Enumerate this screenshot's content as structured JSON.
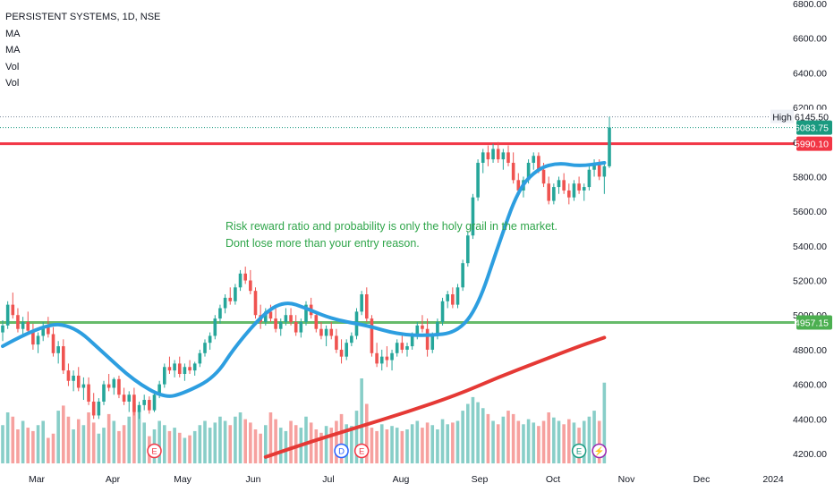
{
  "header": {
    "symbol_title": "PERSISTENT SYSTEMS, 1D, NSE",
    "indicators": [
      "MA",
      "MA",
      "Vol",
      "Vol"
    ]
  },
  "annotation": {
    "line1": "Risk reward ratio and probability is only the holy grail in the market.",
    "line2": "Dont lose more than your entry reason."
  },
  "chart_data": {
    "type": "candlestick",
    "y_axis": {
      "ticks": [
        "6800.00",
        "6600.00",
        "6400.00",
        "6200.00",
        "6000.00",
        "5800.00",
        "5600.00",
        "5400.00",
        "5200.00",
        "5000.00",
        "4800.00",
        "4600.00",
        "4400.00",
        "4200.00"
      ],
      "tick_values": [
        6800,
        6600,
        6400,
        6200,
        6000,
        5800,
        5600,
        5400,
        5200,
        5000,
        4800,
        4600,
        4400,
        4200
      ],
      "range": [
        4180,
        6840
      ]
    },
    "x_axis": {
      "ticks": [
        "Mar",
        "Apr",
        "May",
        "Jun",
        "Jul",
        "Aug",
        "Sep",
        "Oct",
        "Nov",
        "Dec",
        "2024"
      ]
    },
    "price_tags": [
      {
        "label": "High",
        "value": "6145.50",
        "bg": "#ffffff",
        "fg": "#131722",
        "kind": "high"
      },
      {
        "label": "",
        "value": "6083.75",
        "bg": "#1a9a80",
        "fg": "#ffffff",
        "kind": "last"
      },
      {
        "label": "",
        "value": "5990.10",
        "bg": "#f23645",
        "fg": "#ffffff",
        "kind": "resistance"
      },
      {
        "label": "",
        "value": "4957.15",
        "bg": "#4caf50",
        "fg": "#ffffff",
        "kind": "support"
      }
    ],
    "horizontal_lines": [
      {
        "value": 5990.1,
        "color": "#f23645",
        "width": 3
      },
      {
        "value": 4957.15,
        "color": "#66bb6a",
        "width": 3
      },
      {
        "value": 6145.5,
        "color": "#7b8a99",
        "width": 1,
        "dotted": true
      },
      {
        "value": 6083.75,
        "color": "#1a9a80",
        "width": 1,
        "dotted": true
      }
    ],
    "candles_ohlc": [
      [
        4900,
        4970,
        4850,
        4940
      ],
      [
        4940,
        5080,
        4920,
        5060
      ],
      [
        5060,
        5130,
        4980,
        5000
      ],
      [
        5000,
        5040,
        4900,
        4920
      ],
      [
        4920,
        4990,
        4880,
        4960
      ],
      [
        4960,
        5020,
        4900,
        4910
      ],
      [
        4910,
        4950,
        4800,
        4830
      ],
      [
        4830,
        4900,
        4780,
        4880
      ],
      [
        4880,
        4960,
        4850,
        4930
      ],
      [
        4930,
        4990,
        4870,
        4890
      ],
      [
        4890,
        4930,
        4760,
        4780
      ],
      [
        4780,
        4850,
        4720,
        4820
      ],
      [
        4820,
        4860,
        4660,
        4680
      ],
      [
        4680,
        4720,
        4590,
        4620
      ],
      [
        4620,
        4680,
        4560,
        4650
      ],
      [
        4650,
        4700,
        4560,
        4580
      ],
      [
        4580,
        4640,
        4510,
        4600
      ],
      [
        4600,
        4640,
        4480,
        4500
      ],
      [
        4500,
        4550,
        4400,
        4420
      ],
      [
        4420,
        4520,
        4400,
        4500
      ],
      [
        4500,
        4620,
        4480,
        4600
      ],
      [
        4600,
        4660,
        4560,
        4580
      ],
      [
        4580,
        4640,
        4540,
        4630
      ],
      [
        4630,
        4650,
        4520,
        4540
      ],
      [
        4540,
        4580,
        4480,
        4500
      ],
      [
        4500,
        4560,
        4440,
        4540
      ],
      [
        4540,
        4580,
        4420,
        4440
      ],
      [
        4440,
        4500,
        4400,
        4480
      ],
      [
        4480,
        4540,
        4450,
        4510
      ],
      [
        4510,
        4530,
        4430,
        4450
      ],
      [
        4450,
        4560,
        4440,
        4540
      ],
      [
        4540,
        4620,
        4520,
        4600
      ],
      [
        4600,
        4720,
        4580,
        4700
      ],
      [
        4700,
        4760,
        4660,
        4680
      ],
      [
        4680,
        4740,
        4640,
        4720
      ],
      [
        4720,
        4760,
        4640,
        4660
      ],
      [
        4660,
        4720,
        4620,
        4700
      ],
      [
        4700,
        4740,
        4660,
        4680
      ],
      [
        4680,
        4730,
        4650,
        4720
      ],
      [
        4720,
        4800,
        4700,
        4780
      ],
      [
        4780,
        4860,
        4760,
        4840
      ],
      [
        4840,
        4900,
        4800,
        4880
      ],
      [
        4880,
        5000,
        4860,
        4980
      ],
      [
        4980,
        5060,
        4950,
        5040
      ],
      [
        5040,
        5120,
        5010,
        5100
      ],
      [
        5100,
        5160,
        5060,
        5080
      ],
      [
        5080,
        5180,
        5060,
        5160
      ],
      [
        5160,
        5260,
        5140,
        5240
      ],
      [
        5240,
        5280,
        5180,
        5200
      ],
      [
        5200,
        5260,
        5120,
        5140
      ],
      [
        5140,
        5160,
        4980,
        5000
      ],
      [
        5000,
        5060,
        4920,
        4960
      ],
      [
        4960,
        5040,
        4940,
        5020
      ],
      [
        5020,
        5060,
        4960,
        4980
      ],
      [
        4980,
        5040,
        4900,
        4920
      ],
      [
        4920,
        4980,
        4880,
        4960
      ],
      [
        4960,
        5040,
        4940,
        5000
      ],
      [
        5000,
        5040,
        4940,
        4960
      ],
      [
        4960,
        5000,
        4880,
        4900
      ],
      [
        4900,
        4980,
        4870,
        4960
      ],
      [
        4960,
        5080,
        4940,
        5060
      ],
      [
        5060,
        5100,
        4980,
        5000
      ],
      [
        5000,
        5020,
        4900,
        4920
      ],
      [
        4920,
        4960,
        4860,
        4880
      ],
      [
        4880,
        4940,
        4820,
        4920
      ],
      [
        4920,
        4960,
        4860,
        4880
      ],
      [
        4880,
        4920,
        4780,
        4800
      ],
      [
        4800,
        4860,
        4720,
        4760
      ],
      [
        4760,
        4860,
        4740,
        4840
      ],
      [
        4840,
        4900,
        4820,
        4880
      ],
      [
        4880,
        5040,
        4860,
        5020
      ],
      [
        5020,
        5140,
        5000,
        5120
      ],
      [
        5120,
        5160,
        4960,
        4980
      ],
      [
        4980,
        5000,
        4760,
        4780
      ],
      [
        4780,
        4840,
        4700,
        4720
      ],
      [
        4720,
        4800,
        4680,
        4760
      ],
      [
        4760,
        4820,
        4700,
        4740
      ],
      [
        4740,
        4800,
        4680,
        4780
      ],
      [
        4780,
        4860,
        4760,
        4840
      ],
      [
        4840,
        4880,
        4780,
        4800
      ],
      [
        4800,
        4840,
        4760,
        4820
      ],
      [
        4820,
        4900,
        4800,
        4880
      ],
      [
        4880,
        4960,
        4860,
        4940
      ],
      [
        4940,
        5000,
        4900,
        4920
      ],
      [
        4920,
        4980,
        4760,
        4800
      ],
      [
        4800,
        4900,
        4780,
        4880
      ],
      [
        4880,
        4980,
        4860,
        4960
      ],
      [
        4960,
        5100,
        4940,
        5080
      ],
      [
        5080,
        5140,
        5040,
        5120
      ],
      [
        5120,
        5160,
        5040,
        5060
      ],
      [
        5060,
        5180,
        5040,
        5160
      ],
      [
        5160,
        5320,
        5140,
        5300
      ],
      [
        5300,
        5480,
        5280,
        5460
      ],
      [
        5460,
        5700,
        5440,
        5680
      ],
      [
        5680,
        5900,
        5660,
        5880
      ],
      [
        5880,
        5960,
        5820,
        5940
      ],
      [
        5940,
        5980,
        5860,
        5900
      ],
      [
        5900,
        5990,
        5880,
        5960
      ],
      [
        5960,
        6000,
        5880,
        5900
      ],
      [
        5900,
        5960,
        5840,
        5940
      ],
      [
        5940,
        5980,
        5860,
        5880
      ],
      [
        5880,
        5940,
        5760,
        5780
      ],
      [
        5780,
        5820,
        5700,
        5720
      ],
      [
        5720,
        5800,
        5680,
        5780
      ],
      [
        5780,
        5900,
        5760,
        5880
      ],
      [
        5880,
        5940,
        5840,
        5920
      ],
      [
        5920,
        5940,
        5820,
        5840
      ],
      [
        5840,
        5880,
        5740,
        5760
      ],
      [
        5760,
        5800,
        5640,
        5660
      ],
      [
        5660,
        5760,
        5640,
        5740
      ],
      [
        5740,
        5800,
        5700,
        5780
      ],
      [
        5780,
        5820,
        5700,
        5720
      ],
      [
        5720,
        5760,
        5640,
        5680
      ],
      [
        5680,
        5780,
        5660,
        5760
      ],
      [
        5760,
        5800,
        5700,
        5720
      ],
      [
        5720,
        5760,
        5660,
        5740
      ],
      [
        5740,
        5860,
        5720,
        5840
      ],
      [
        5840,
        5900,
        5800,
        5880
      ],
      [
        5880,
        5900,
        5780,
        5800
      ],
      [
        5800,
        5880,
        5700,
        5860
      ],
      [
        5860,
        6146,
        5850,
        6084
      ]
    ],
    "volume": [
      0.45,
      0.6,
      0.55,
      0.4,
      0.5,
      0.42,
      0.38,
      0.45,
      0.5,
      0.3,
      0.35,
      0.62,
      0.68,
      0.55,
      0.4,
      0.52,
      0.45,
      0.6,
      0.48,
      0.35,
      0.42,
      0.58,
      0.5,
      0.38,
      0.45,
      0.55,
      0.7,
      0.62,
      0.48,
      0.32,
      0.4,
      0.5,
      0.45,
      0.38,
      0.42,
      0.36,
      0.3,
      0.33,
      0.38,
      0.45,
      0.5,
      0.42,
      0.48,
      0.55,
      0.5,
      0.45,
      0.55,
      0.6,
      0.52,
      0.48,
      0.4,
      0.35,
      0.45,
      0.6,
      0.52,
      0.42,
      0.38,
      0.5,
      0.45,
      0.42,
      0.55,
      0.48,
      0.4,
      0.36,
      0.44,
      0.42,
      0.5,
      0.58,
      0.46,
      0.44,
      0.62,
      1.0,
      0.7,
      0.42,
      0.38,
      0.46,
      0.4,
      0.44,
      0.42,
      0.38,
      0.4,
      0.46,
      0.5,
      0.42,
      0.48,
      0.45,
      0.4,
      0.52,
      0.46,
      0.48,
      0.5,
      0.62,
      0.7,
      0.78,
      0.72,
      0.65,
      0.58,
      0.5,
      0.46,
      0.55,
      0.62,
      0.58,
      0.5,
      0.46,
      0.52,
      0.48,
      0.44,
      0.5,
      0.6,
      0.54,
      0.5,
      0.46,
      0.52,
      0.48,
      0.42,
      0.5,
      0.55,
      0.62,
      0.5,
      0.95
    ],
    "ma_fast": [
      [
        0,
        4820
      ],
      [
        8,
        4950
      ],
      [
        14,
        4940
      ],
      [
        20,
        4780
      ],
      [
        26,
        4620
      ],
      [
        32,
        4520
      ],
      [
        36,
        4550
      ],
      [
        42,
        4640
      ],
      [
        46,
        4820
      ],
      [
        52,
        5020
      ],
      [
        56,
        5080
      ],
      [
        60,
        5040
      ],
      [
        64,
        4990
      ],
      [
        68,
        4960
      ],
      [
        72,
        4940
      ],
      [
        78,
        4890
      ],
      [
        84,
        4880
      ],
      [
        90,
        4900
      ],
      [
        94,
        5050
      ],
      [
        98,
        5400
      ],
      [
        102,
        5730
      ],
      [
        106,
        5850
      ],
      [
        110,
        5880
      ],
      [
        114,
        5860
      ],
      [
        119,
        5880
      ]
    ],
    "ma_slow": [
      [
        52,
        4180
      ],
      [
        60,
        4260
      ],
      [
        70,
        4350
      ],
      [
        80,
        4440
      ],
      [
        90,
        4540
      ],
      [
        98,
        4640
      ],
      [
        106,
        4730
      ],
      [
        114,
        4820
      ],
      [
        119,
        4870
      ]
    ],
    "event_markers": [
      {
        "label": "E",
        "index": 30,
        "color": "#f23645"
      },
      {
        "label": "D",
        "index": 67,
        "color": "#2962ff"
      },
      {
        "label": "E",
        "index": 71,
        "color": "#f23645"
      },
      {
        "label": "E",
        "index": 114,
        "color": "#1a9a80"
      },
      {
        "label": "⚡",
        "index": 118,
        "color": "#9c27b0"
      }
    ],
    "colors": {
      "up": "#26a69a",
      "down": "#ef5350",
      "ma_fast": "#2d9ee0",
      "ma_slow": "#e53935"
    }
  }
}
